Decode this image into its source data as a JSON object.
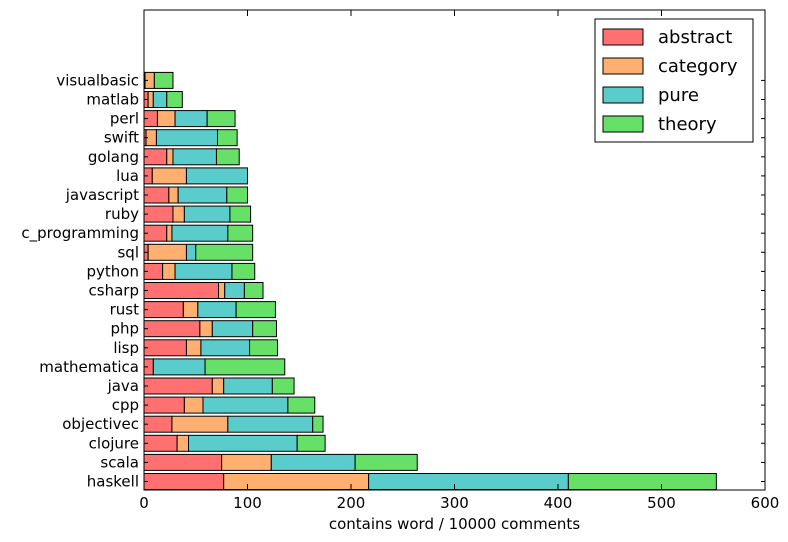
{
  "chart_data": {
    "type": "bar",
    "orientation": "horizontal",
    "stacked": true,
    "title": "",
    "xlabel": "contains word / 10000 comments",
    "ylabel": "",
    "xlim": [
      0,
      600
    ],
    "xticks": [
      "0",
      "100",
      "200",
      "300",
      "400",
      "500",
      "600"
    ],
    "legend_position": "top-right",
    "grid": false,
    "categories": [
      "haskell",
      "scala",
      "clojure",
      "objectivec",
      "cpp",
      "java",
      "mathematica",
      "lisp",
      "php",
      "rust",
      "csharp",
      "python",
      "sql",
      "c_programming",
      "ruby",
      "javascript",
      "lua",
      "golang",
      "swift",
      "perl",
      "matlab",
      "visualbasic"
    ],
    "series": [
      {
        "name": "abstract",
        "color": "#ff7070",
        "values": [
          77,
          75,
          32,
          27,
          39,
          66,
          9,
          41,
          54,
          38,
          72,
          18,
          4,
          22,
          28,
          24,
          8,
          22,
          2,
          13,
          4,
          1
        ]
      },
      {
        "name": "category",
        "color": "#ffb070",
        "values": [
          140,
          48,
          11,
          54,
          18,
          11,
          0,
          14,
          12,
          14,
          6,
          12,
          37,
          5,
          11,
          9,
          33,
          6,
          10,
          17,
          5,
          9
        ]
      },
      {
        "name": "pure",
        "color": "#5bcccc",
        "values": [
          193,
          81,
          105,
          82,
          82,
          47,
          50,
          47,
          39,
          37,
          19,
          55,
          9,
          54,
          44,
          47,
          59,
          42,
          59,
          31,
          13,
          0
        ]
      },
      {
        "name": "theory",
        "color": "#66e066",
        "values": [
          143,
          60,
          27,
          10,
          26,
          21,
          77,
          27,
          23,
          38,
          18,
          22,
          55,
          24,
          20,
          20,
          0,
          22,
          19,
          27,
          15,
          18
        ]
      }
    ]
  }
}
